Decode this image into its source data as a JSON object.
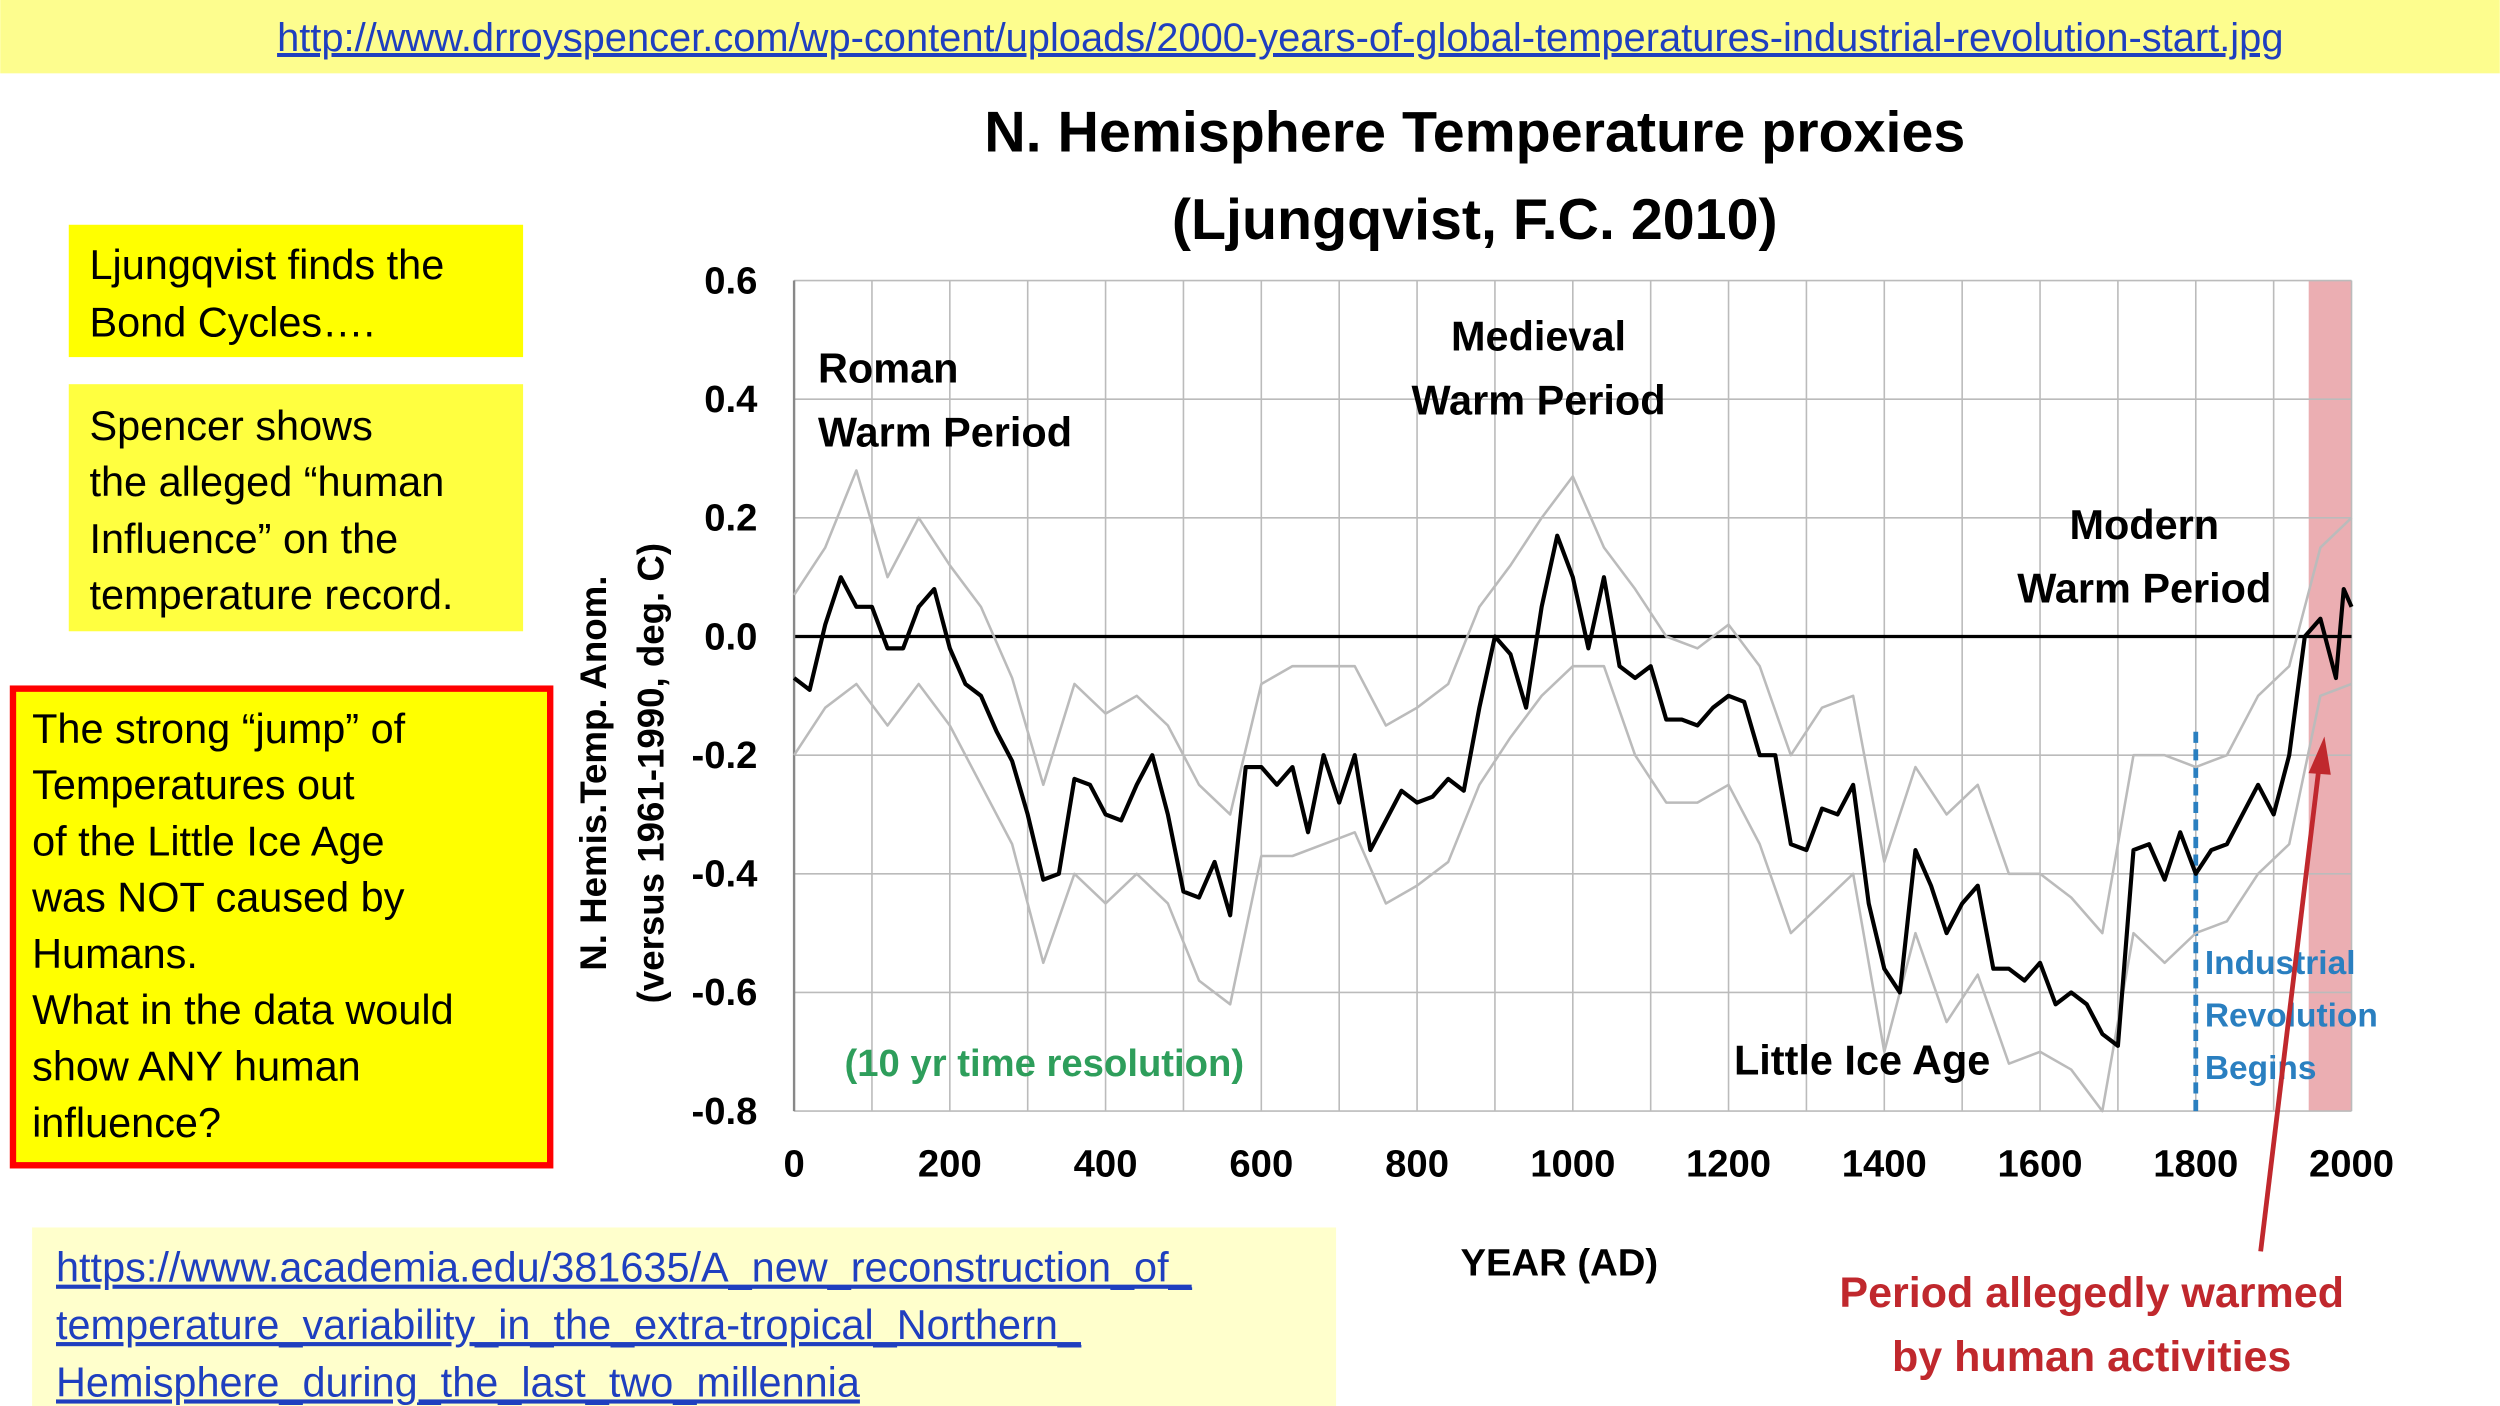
{
  "url_top": "http://www.drroyspencer.com/wp-content/uploads/2000-years-of-global-temperatures-industrial-revolution-start.jpg",
  "notes": [
    [
      "Ljungqvist finds the",
      "Bond Cycles…."
    ],
    [
      "Spencer shows",
      "the alleged “human",
      "Influence” on the",
      "temperature record."
    ]
  ],
  "callout": [
    "The strong “jump” of",
    "Temperatures out",
    "of the Little Ice Age",
    "was NOT caused by",
    "Humans.",
    "What in the data would",
    "show ANY human",
    "influence?"
  ],
  "link_bottom": [
    "https://www.academia.edu/381635/A_new_reconstruction_of_",
    "temperature_variability_in_the_extra-tropical_Northern_",
    "Hemisphere_during_the_last_two_millennia"
  ],
  "chart_data": {
    "type": "line",
    "title": [
      "N. Hemisphere Temperature proxies",
      "(Ljungqvist, F.C.  2010)"
    ],
    "y_label": [
      "N. Hemis.Temp. Anom.",
      "(versus 1961-1990, deg. C)"
    ],
    "x_label": "YEAR (AD)",
    "x": [
      0,
      20,
      40,
      60,
      80,
      100,
      120,
      140,
      160,
      180,
      200,
      220,
      240,
      260,
      280,
      300,
      320,
      340,
      360,
      380,
      400,
      420,
      440,
      460,
      480,
      500,
      520,
      540,
      560,
      580,
      600,
      620,
      640,
      660,
      680,
      700,
      720,
      740,
      760,
      780,
      800,
      820,
      840,
      860,
      880,
      900,
      920,
      940,
      960,
      980,
      1000,
      1020,
      1040,
      1060,
      1080,
      1100,
      1120,
      1140,
      1160,
      1180,
      1200,
      1220,
      1240,
      1260,
      1280,
      1300,
      1320,
      1340,
      1360,
      1380,
      1400,
      1420,
      1440,
      1460,
      1480,
      1500,
      1520,
      1540,
      1560,
      1580,
      1600,
      1620,
      1640,
      1660,
      1680,
      1700,
      1720,
      1740,
      1760,
      1780,
      1800,
      1820,
      1840,
      1860,
      1880,
      1900,
      1920,
      1940,
      1960,
      1980,
      1990,
      2000
    ],
    "series": [
      {
        "color": "#000000",
        "values": [
          -0.07,
          -0.09,
          0.02,
          0.1,
          0.05,
          0.05,
          -0.02,
          -0.02,
          0.05,
          0.08,
          -0.02,
          -0.08,
          -0.1,
          -0.16,
          -0.21,
          -0.3,
          -0.41,
          -0.4,
          -0.24,
          -0.25,
          -0.3,
          -0.31,
          -0.25,
          -0.2,
          -0.3,
          -0.43,
          -0.44,
          -0.38,
          -0.47,
          -0.22,
          -0.22,
          -0.25,
          -0.22,
          -0.33,
          -0.2,
          -0.28,
          -0.2,
          -0.36,
          -0.31,
          -0.26,
          -0.28,
          -0.27,
          -0.24,
          -0.26,
          -0.12,
          0.0,
          -0.03,
          -0.12,
          0.05,
          0.17,
          0.1,
          -0.02,
          0.1,
          -0.05,
          -0.07,
          -0.05,
          -0.14,
          -0.14,
          -0.15,
          -0.12,
          -0.1,
          -0.11,
          -0.2,
          -0.2,
          -0.35,
          -0.36,
          -0.29,
          -0.3,
          -0.25,
          -0.45,
          -0.56,
          -0.6,
          -0.36,
          -0.42,
          -0.5,
          -0.45,
          -0.42,
          -0.56,
          -0.56,
          -0.58,
          -0.55,
          -0.62,
          -0.6,
          -0.62,
          -0.67,
          -0.69,
          -0.36,
          -0.35,
          -0.41,
          -0.33,
          -0.4,
          -0.36,
          -0.35,
          -0.3,
          -0.25,
          -0.3,
          -0.2,
          0.0,
          0.03,
          -0.07,
          0.08,
          0.05
        ]
      },
      {
        "color": "#bbbbbb",
        "x": [
          0,
          40,
          80,
          120,
          160,
          200,
          240,
          280,
          320,
          360,
          400,
          440,
          480,
          520,
          560,
          600,
          640,
          680,
          720,
          760,
          800,
          840,
          880,
          920,
          960,
          1000,
          1040,
          1080,
          1120,
          1160,
          1200,
          1240,
          1280,
          1320,
          1360,
          1400,
          1440,
          1480,
          1520,
          1560,
          1600,
          1640,
          1680,
          1720,
          1760,
          1800,
          1840,
          1880,
          1920,
          1960,
          2000
        ],
        "values": [
          0.07,
          0.15,
          0.28,
          0.1,
          0.2,
          0.12,
          0.05,
          -0.07,
          -0.25,
          -0.08,
          -0.13,
          -0.1,
          -0.15,
          -0.25,
          -0.3,
          -0.08,
          -0.05,
          -0.05,
          -0.05,
          -0.15,
          -0.12,
          -0.08,
          0.05,
          0.12,
          0.2,
          0.27,
          0.15,
          0.08,
          0.0,
          -0.02,
          0.02,
          -0.05,
          -0.2,
          -0.12,
          -0.1,
          -0.38,
          -0.22,
          -0.3,
          -0.25,
          -0.4,
          -0.4,
          -0.44,
          -0.5,
          -0.2,
          -0.2,
          -0.22,
          -0.2,
          -0.1,
          -0.05,
          0.15,
          0.2
        ]
      },
      {
        "color": "#bbbbbb",
        "x": [
          0,
          40,
          80,
          120,
          160,
          200,
          240,
          280,
          320,
          360,
          400,
          440,
          480,
          520,
          560,
          600,
          640,
          680,
          720,
          760,
          800,
          840,
          880,
          920,
          960,
          1000,
          1040,
          1080,
          1120,
          1160,
          1200,
          1240,
          1280,
          1320,
          1360,
          1400,
          1440,
          1480,
          1520,
          1560,
          1600,
          1640,
          1680,
          1720,
          1760,
          1800,
          1840,
          1880,
          1920,
          1960,
          2000
        ],
        "values": [
          -0.2,
          -0.12,
          -0.08,
          -0.15,
          -0.08,
          -0.15,
          -0.25,
          -0.35,
          -0.55,
          -0.4,
          -0.45,
          -0.4,
          -0.45,
          -0.58,
          -0.62,
          -0.37,
          -0.37,
          -0.35,
          -0.33,
          -0.45,
          -0.42,
          -0.38,
          -0.25,
          -0.17,
          -0.1,
          -0.05,
          -0.05,
          -0.2,
          -0.28,
          -0.28,
          -0.25,
          -0.35,
          -0.5,
          -0.45,
          -0.4,
          -0.7,
          -0.5,
          -0.65,
          -0.57,
          -0.72,
          -0.7,
          -0.73,
          -0.8,
          -0.5,
          -0.55,
          -0.5,
          -0.48,
          -0.4,
          -0.35,
          -0.1,
          -0.08
        ]
      }
    ],
    "xlim": [
      0,
      2000
    ],
    "ylim": [
      -0.8,
      0.6
    ],
    "xticks": [
      0,
      200,
      400,
      600,
      800,
      1000,
      1200,
      1400,
      1600,
      1800,
      2000
    ],
    "x_minor_ticks": [
      100,
      300,
      500,
      700,
      900,
      1100,
      1300,
      1500,
      1700,
      1900
    ],
    "yticks": [
      0.6,
      0.4,
      0.2,
      {
        "value": 0,
        "label": "0.0"
      },
      -0.2,
      -0.4,
      -0.6,
      -0.8
    ],
    "grid": true,
    "shaded_span": [
      1945,
      2000
    ],
    "shaded_color": "#e8a0a4",
    "marker_year": 1800,
    "marker_color": "#2a7fc0",
    "annotations": [
      {
        "lines": [
          "Roman",
          "Warm Period"
        ],
        "color": "#000000"
      },
      {
        "lines": [
          "Medieval",
          "Warm Period"
        ],
        "color": "#000000"
      },
      {
        "lines": [
          "Modern",
          "Warm Period"
        ],
        "color": "#000000"
      },
      {
        "lines": [
          "Little Ice Age"
        ],
        "color": "#000000"
      },
      {
        "lines": [
          "(10 yr time resolution)"
        ],
        "color": "#2e9e5b"
      },
      {
        "lines": [
          "Industrial",
          "Revolution",
          "Begins"
        ],
        "color": "#2a7fc0"
      }
    ],
    "arrow_note": [
      "Period allegedly warmed",
      "by human activities"
    ],
    "arrow_color": "#c0282d"
  }
}
